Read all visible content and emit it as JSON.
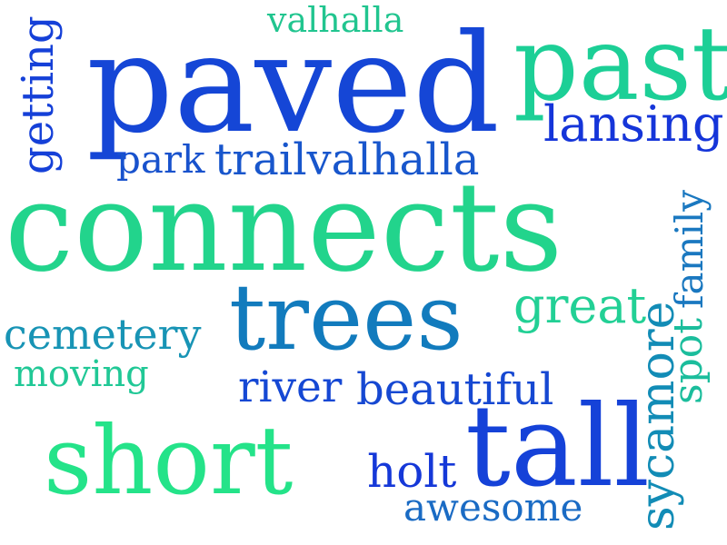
{
  "words": [
    {
      "id": "paved",
      "text": "paved",
      "color": "#1546d6"
    },
    {
      "id": "connects",
      "text": "connects",
      "color": "#22d48c"
    },
    {
      "id": "past",
      "text": "past",
      "color": "#1ccf96"
    },
    {
      "id": "trees",
      "text": "trees",
      "color": "#127bbd"
    },
    {
      "id": "short",
      "text": "short",
      "color": "#24e389"
    },
    {
      "id": "tall",
      "text": "tall",
      "color": "#1542d8"
    },
    {
      "id": "lansing",
      "text": "lansing",
      "color": "#1535d9"
    },
    {
      "id": "trailvalhalla",
      "text": "trailvalhalla",
      "color": "#1856cc"
    },
    {
      "id": "valhalla",
      "text": "valhalla",
      "color": "#21c58f"
    },
    {
      "id": "park",
      "text": "park",
      "color": "#1852cd"
    },
    {
      "id": "great",
      "text": "great",
      "color": "#22d095"
    },
    {
      "id": "cemetery",
      "text": "cemetery",
      "color": "#1894b5"
    },
    {
      "id": "moving",
      "text": "moving",
      "color": "#21c896"
    },
    {
      "id": "river",
      "text": "river",
      "color": "#1548d4"
    },
    {
      "id": "beautiful",
      "text": "beautiful",
      "color": "#1648d2"
    },
    {
      "id": "holt",
      "text": "holt",
      "color": "#1538d8"
    },
    {
      "id": "awesome",
      "text": "awesome",
      "color": "#1a6bc4"
    },
    {
      "id": "getting",
      "text": "getting",
      "color": "#1540d8"
    },
    {
      "id": "sycamore",
      "text": "sycamore",
      "color": "#128cb6"
    },
    {
      "id": "spot",
      "text": "spot",
      "color": "#1bbd9c"
    },
    {
      "id": "family",
      "text": "family",
      "color": "#1a78c0"
    }
  ]
}
